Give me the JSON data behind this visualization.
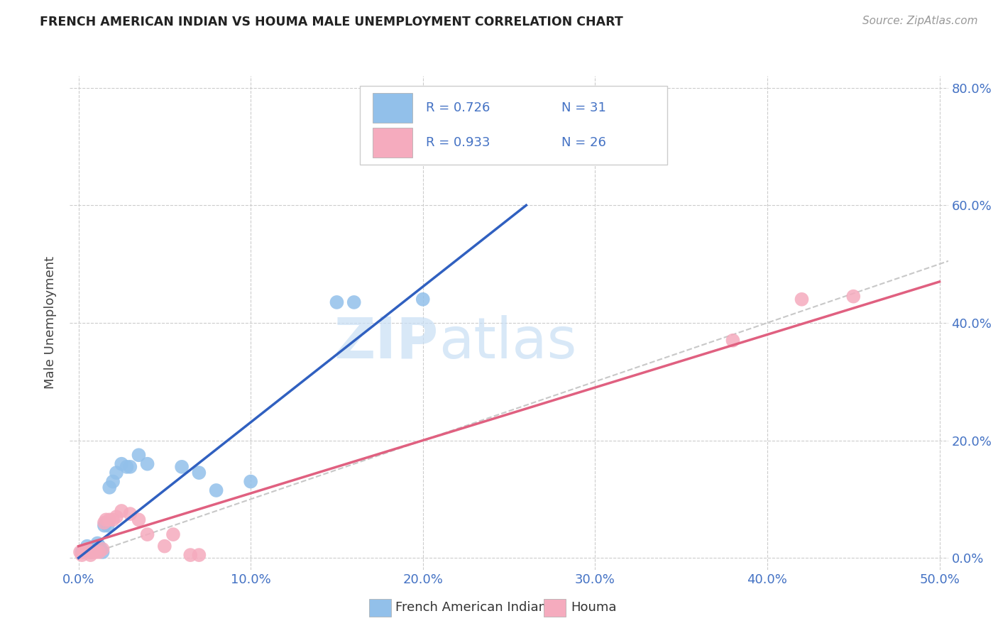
{
  "title": "FRENCH AMERICAN INDIAN VS HOUMA MALE UNEMPLOYMENT CORRELATION CHART",
  "source": "Source: ZipAtlas.com",
  "xlabel_ticks": [
    "0.0%",
    "10.0%",
    "20.0%",
    "30.0%",
    "40.0%",
    "50.0%"
  ],
  "ylabel_ticks": [
    "0.0%",
    "20.0%",
    "40.0%",
    "60.0%",
    "80.0%"
  ],
  "ylabel_label": "Male Unemployment",
  "xlim": [
    -0.005,
    0.505
  ],
  "ylim": [
    -0.02,
    0.82
  ],
  "watermark": "ZIPatlas",
  "legend_labels": [
    "French American Indians",
    "Houma"
  ],
  "blue_R": "R = 0.726",
  "blue_N": "N = 31",
  "pink_R": "R = 0.933",
  "pink_N": "N = 26",
  "blue_color": "#92C0EA",
  "pink_color": "#F5ABBE",
  "blue_line_color": "#3060C0",
  "pink_line_color": "#E06080",
  "diagonal_color": "#C8C8C8",
  "blue_scatter": [
    [
      0.002,
      0.01
    ],
    [
      0.003,
      0.01
    ],
    [
      0.004,
      0.01
    ],
    [
      0.005,
      0.02
    ],
    [
      0.006,
      0.015
    ],
    [
      0.007,
      0.01
    ],
    [
      0.008,
      0.01
    ],
    [
      0.009,
      0.015
    ],
    [
      0.01,
      0.02
    ],
    [
      0.011,
      0.025
    ],
    [
      0.012,
      0.02
    ],
    [
      0.013,
      0.015
    ],
    [
      0.014,
      0.01
    ],
    [
      0.015,
      0.055
    ],
    [
      0.016,
      0.06
    ],
    [
      0.017,
      0.055
    ],
    [
      0.018,
      0.12
    ],
    [
      0.02,
      0.13
    ],
    [
      0.022,
      0.145
    ],
    [
      0.025,
      0.16
    ],
    [
      0.028,
      0.155
    ],
    [
      0.03,
      0.155
    ],
    [
      0.035,
      0.175
    ],
    [
      0.04,
      0.16
    ],
    [
      0.06,
      0.155
    ],
    [
      0.07,
      0.145
    ],
    [
      0.08,
      0.115
    ],
    [
      0.1,
      0.13
    ],
    [
      0.15,
      0.435
    ],
    [
      0.16,
      0.435
    ],
    [
      0.2,
      0.44
    ]
  ],
  "pink_scatter": [
    [
      0.001,
      0.01
    ],
    [
      0.002,
      0.005
    ],
    [
      0.003,
      0.01
    ],
    [
      0.005,
      0.015
    ],
    [
      0.006,
      0.01
    ],
    [
      0.007,
      0.005
    ],
    [
      0.008,
      0.01
    ],
    [
      0.01,
      0.01
    ],
    [
      0.012,
      0.01
    ],
    [
      0.014,
      0.015
    ],
    [
      0.015,
      0.06
    ],
    [
      0.016,
      0.065
    ],
    [
      0.018,
      0.065
    ],
    [
      0.02,
      0.065
    ],
    [
      0.022,
      0.07
    ],
    [
      0.025,
      0.08
    ],
    [
      0.03,
      0.075
    ],
    [
      0.035,
      0.065
    ],
    [
      0.04,
      0.04
    ],
    [
      0.05,
      0.02
    ],
    [
      0.055,
      0.04
    ],
    [
      0.065,
      0.005
    ],
    [
      0.07,
      0.005
    ],
    [
      0.38,
      0.37
    ],
    [
      0.42,
      0.44
    ],
    [
      0.45,
      0.445
    ]
  ],
  "blue_line": [
    [
      0.0,
      0.0
    ],
    [
      0.26,
      0.6
    ]
  ],
  "pink_line": [
    [
      0.0,
      0.02
    ],
    [
      0.5,
      0.47
    ]
  ],
  "diagonal_line": [
    [
      0.0,
      0.0
    ],
    [
      0.8,
      0.8
    ]
  ]
}
